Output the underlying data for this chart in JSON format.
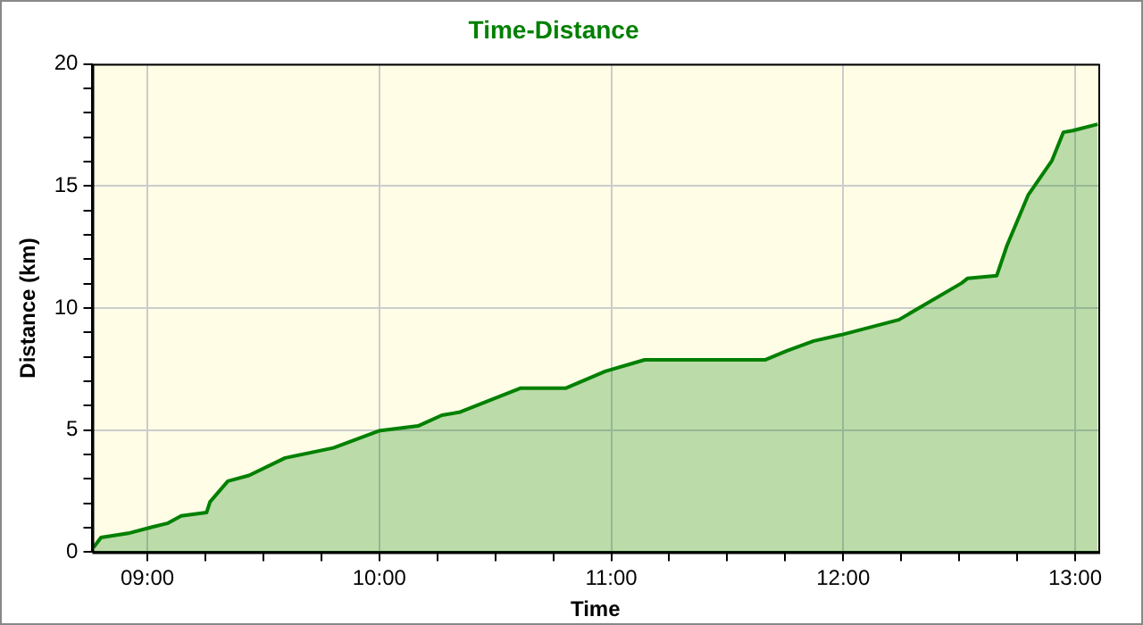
{
  "chart_data": {
    "type": "area",
    "title": "Time-Distance",
    "xlabel": "Time",
    "ylabel": "Distance (km)",
    "x": [
      8.768,
      8.8,
      8.917,
      9.021,
      9.086,
      9.146,
      9.255,
      9.27,
      9.347,
      9.438,
      9.594,
      9.802,
      9.998,
      10.167,
      10.27,
      10.349,
      10.61,
      10.805,
      10.974,
      11.144,
      11.665,
      11.755,
      11.873,
      11.99,
      12.24,
      12.51,
      12.537,
      12.662,
      12.706,
      12.797,
      12.9,
      12.949,
      12.99,
      13.097
    ],
    "series": [
      {
        "color": "#008000",
        "values": [
          0.2,
          0.6,
          0.77,
          1.03,
          1.18,
          1.49,
          1.62,
          2.06,
          2.91,
          3.14,
          3.86,
          4.27,
          4.97,
          5.17,
          5.61,
          5.74,
          6.72,
          6.72,
          7.41,
          7.88,
          7.88,
          8.24,
          8.65,
          8.9,
          9.52,
          11.02,
          11.22,
          11.33,
          12.56,
          14.62,
          16.04,
          17.2,
          17.27,
          17.53
        ]
      }
    ],
    "xlim": [
      8.763,
      13.1
    ],
    "xticks": [
      {
        "value": 9,
        "label": "09:00"
      },
      {
        "value": 9.25,
        "label": null
      },
      {
        "value": 9.5,
        "label": null
      },
      {
        "value": 9.75,
        "label": null
      },
      {
        "value": 10,
        "label": "10:00"
      },
      {
        "value": 10.25,
        "label": null
      },
      {
        "value": 10.5,
        "label": null
      },
      {
        "value": 10.75,
        "label": null
      },
      {
        "value": 11,
        "label": "11:00"
      },
      {
        "value": 11.25,
        "label": null
      },
      {
        "value": 11.5,
        "label": null
      },
      {
        "value": 11.75,
        "label": null
      },
      {
        "value": 12,
        "label": "12:00"
      },
      {
        "value": 12.25,
        "label": null
      },
      {
        "value": 12.5,
        "label": null
      },
      {
        "value": 12.75,
        "label": null
      },
      {
        "value": 13,
        "label": "13:00"
      }
    ],
    "ylim": [
      0,
      20
    ],
    "yticks": [
      0,
      {
        "value": 1,
        "label": null
      },
      {
        "value": 2,
        "label": null
      },
      {
        "value": 3,
        "label": null
      },
      {
        "value": 4,
        "label": null
      },
      5,
      {
        "value": 6,
        "label": null
      },
      {
        "value": 7,
        "label": null
      },
      {
        "value": 8,
        "label": null
      },
      {
        "value": 9,
        "label": null
      },
      10,
      {
        "value": 11,
        "label": null
      },
      {
        "value": 12,
        "label": null
      },
      {
        "value": 13,
        "label": null
      },
      {
        "value": 14,
        "label": null
      },
      15,
      {
        "value": 16,
        "label": null
      },
      {
        "value": 17,
        "label": null
      },
      {
        "value": 18,
        "label": null
      },
      {
        "value": 19,
        "label": null
      },
      20
    ],
    "grid": true,
    "legend": false,
    "marker": "none",
    "line_style": "solid"
  }
}
